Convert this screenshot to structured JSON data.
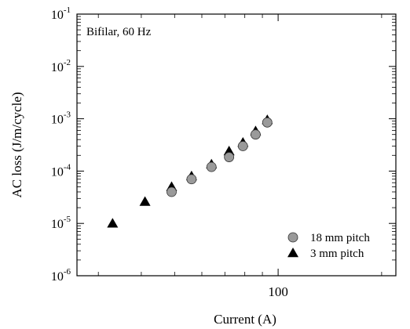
{
  "chart_data": {
    "type": "scatter",
    "title": "",
    "annotation": "Bifilar, 60 Hz",
    "xlabel": "Current (A)",
    "ylabel": "AC loss (J/m/cycle)",
    "x_scale": "log",
    "y_scale": "log",
    "xlim": [
      26,
      220
    ],
    "ylim": [
      1e-06,
      0.1
    ],
    "x_tick_labels": [
      {
        "value": 100,
        "label": "100"
      }
    ],
    "y_tick_labels": [
      {
        "value": 0.1,
        "mant": "10",
        "exp": "-1"
      },
      {
        "value": 0.01,
        "mant": "10",
        "exp": "-2"
      },
      {
        "value": 0.001,
        "mant": "10",
        "exp": "-3"
      },
      {
        "value": 0.0001,
        "mant": "10",
        "exp": "-4"
      },
      {
        "value": 1e-05,
        "mant": "10",
        "exp": "-5"
      },
      {
        "value": 1e-06,
        "mant": "10",
        "exp": "-6"
      }
    ],
    "grid": false,
    "legend_position": "bottom-right",
    "series": [
      {
        "name": "18 mm pitch",
        "marker": "circle",
        "color": "#9a9a9a",
        "points": [
          {
            "x": 49,
            "y": 4e-05
          },
          {
            "x": 56,
            "y": 7e-05
          },
          {
            "x": 64,
            "y": 0.00012
          },
          {
            "x": 72,
            "y": 0.000185
          },
          {
            "x": 79,
            "y": 0.0003
          },
          {
            "x": 86,
            "y": 0.0005
          },
          {
            "x": 93,
            "y": 0.00085
          }
        ]
      },
      {
        "name": "3 mm pitch",
        "marker": "triangle",
        "color": "#000000",
        "points": [
          {
            "x": 33,
            "y": 1e-05
          },
          {
            "x": 41,
            "y": 2.6e-05
          },
          {
            "x": 49,
            "y": 5e-05
          },
          {
            "x": 56,
            "y": 8e-05
          },
          {
            "x": 64,
            "y": 0.000135
          },
          {
            "x": 72,
            "y": 0.00024
          },
          {
            "x": 79,
            "y": 0.00035
          },
          {
            "x": 86,
            "y": 0.00058
          },
          {
            "x": 93,
            "y": 0.00095
          }
        ]
      }
    ]
  }
}
